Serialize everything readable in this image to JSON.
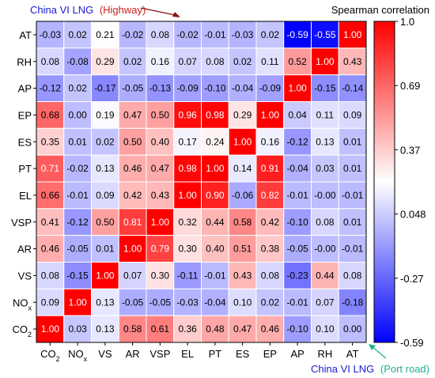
{
  "chart_data": {
    "type": "heatmap",
    "title": "",
    "xlabel": "",
    "ylabel": "",
    "colorbar_label": "Spearman correlation",
    "colorbar_ticks": [
      "1.0",
      "0.69",
      "0.37",
      "0.048",
      "-0.27",
      "-0.59"
    ],
    "colorbar_range": [
      -0.59,
      1.0
    ],
    "colors": {
      "high": "#ff0000",
      "mid": "#ffffff",
      "low": "#0000ff"
    },
    "x_labels": [
      "CO2",
      "NOx",
      "VS",
      "AR",
      "VSP",
      "EL",
      "PT",
      "ES",
      "EP",
      "AP",
      "RH",
      "AT"
    ],
    "y_labels": [
      "AT",
      "RH",
      "AP",
      "EP",
      "ES",
      "PT",
      "EL",
      "VSP",
      "AR",
      "VS",
      "NOx",
      "CO2"
    ],
    "values": [
      [
        -0.03,
        0.02,
        0.21,
        -0.02,
        0.08,
        -0.02,
        -0.01,
        -0.03,
        0.02,
        -0.59,
        -0.55,
        1.0
      ],
      [
        0.08,
        -0.08,
        0.29,
        0.02,
        0.16,
        0.07,
        0.08,
        0.02,
        0.11,
        0.52,
        1.0,
        0.43
      ],
      [
        -0.12,
        0.02,
        -0.17,
        -0.05,
        -0.13,
        -0.09,
        -0.1,
        -0.04,
        -0.09,
        1.0,
        -0.15,
        -0.14
      ],
      [
        0.68,
        0.0,
        0.19,
        0.47,
        0.5,
        0.96,
        0.98,
        0.29,
        1.0,
        0.04,
        0.11,
        0.09
      ],
      [
        0.35,
        0.01,
        0.02,
        0.5,
        0.4,
        0.17,
        0.24,
        1.0,
        0.16,
        -0.12,
        0.13,
        0.01
      ],
      [
        0.71,
        -0.02,
        0.13,
        0.46,
        0.47,
        0.98,
        1.0,
        0.14,
        0.91,
        -0.04,
        0.03,
        0.01
      ],
      [
        0.66,
        -0.01,
        0.09,
        0.42,
        0.43,
        1.0,
        0.9,
        -0.06,
        0.82,
        -0.01,
        -0.0,
        -0.01
      ],
      [
        0.41,
        -0.12,
        0.5,
        0.81,
        1.0,
        0.32,
        0.44,
        0.58,
        0.42,
        -0.1,
        0.08,
        0.01
      ],
      [
        0.46,
        -0.05,
        0.01,
        1.0,
        0.79,
        0.3,
        0.4,
        0.51,
        0.38,
        -0.05,
        -0.0,
        -0.01
      ],
      [
        0.08,
        -0.15,
        1.0,
        0.07,
        0.3,
        -0.11,
        -0.01,
        0.43,
        0.08,
        -0.23,
        0.44,
        0.08
      ],
      [
        0.09,
        1.0,
        0.13,
        -0.05,
        -0.05,
        -0.03,
        -0.04,
        0.1,
        0.02,
        -0.01,
        0.07,
        -0.18
      ],
      [
        1.0,
        0.03,
        0.13,
        0.58,
        0.61,
        0.36,
        0.48,
        0.47,
        0.46,
        -0.1,
        0.1,
        0.0
      ]
    ],
    "value_labels": [
      [
        "-0.03",
        "0.02",
        "0.21",
        "-0.02",
        "0.08",
        "-0.02",
        "-0.01",
        "-0.03",
        "0.02",
        "-0.59",
        "-0.55",
        "1.00"
      ],
      [
        "0.08",
        "-0.08",
        "0.29",
        "0.02",
        "0.16",
        "0.07",
        "0.08",
        "0.02",
        "0.11",
        "0.52",
        "1.00",
        "0.43"
      ],
      [
        "-0.12",
        "0.02",
        "-0.17",
        "-0.05",
        "-0.13",
        "-0.09",
        "-0.10",
        "-0.04",
        "-0.09",
        "1.00",
        "-0.15",
        "-0.14"
      ],
      [
        "0.68",
        "0.00",
        "0.19",
        "0.47",
        "0.50",
        "0.96",
        "0.98",
        "0.29",
        "1.00",
        "0.04",
        "0.11",
        "0.09"
      ],
      [
        "0.35",
        "0.01",
        "0.02",
        "0.50",
        "0.40",
        "0.17",
        "0.24",
        "1.00",
        "0.16",
        "-0.12",
        "0.13",
        "0.01"
      ],
      [
        "0.71",
        "-0.02",
        "0.13",
        "0.46",
        "0.47",
        "0.98",
        "1.00",
        "0.14",
        "0.91",
        "-0.04",
        "0.03",
        "0.01"
      ],
      [
        "0.66",
        "-0.01",
        "0.09",
        "0.42",
        "0.43",
        "1.00",
        "0.90",
        "-0.06",
        "0.82",
        "-0.01",
        "-0.00",
        "-0.01"
      ],
      [
        "0.41",
        "-0.12",
        "0.50",
        "0.81",
        "1.00",
        "0.32",
        "0.44",
        "0.58",
        "0.42",
        "-0.10",
        "0.08",
        "0.01"
      ],
      [
        "0.46",
        "-0.05",
        "0.01",
        "1.00",
        "0.79",
        "0.30",
        "0.40",
        "0.51",
        "0.38",
        "-0.05",
        "-0.00",
        "-0.01"
      ],
      [
        "0.08",
        "-0.15",
        "1.00",
        "0.07",
        "0.30",
        "-0.11",
        "-0.01",
        "0.43",
        "0.08",
        "-0.23",
        "0.44",
        "0.08"
      ],
      [
        "0.09",
        "1.00",
        "0.13",
        "-0.05",
        "-0.05",
        "-0.03",
        "-0.04",
        "0.10",
        "0.02",
        "-0.01",
        "0.07",
        "-0.18"
      ],
      [
        "1.00",
        "0.03",
        "0.13",
        "0.58",
        "0.61",
        "0.36",
        "0.48",
        "0.47",
        "0.46",
        "-0.10",
        "0.10",
        "0.00"
      ]
    ],
    "annotations": {
      "top": {
        "prefix": "China VI LNG",
        "suffix": "(Highway)",
        "prefix_color": "#1a1acc",
        "suffix_color": "#c8201e",
        "arrow_color": "#8b1010"
      },
      "bottom": {
        "prefix": "China VI LNG",
        "suffix": "(Port road)",
        "prefix_color": "#1a1acc",
        "suffix_color": "#20b090",
        "arrow_color": "#20b090"
      }
    }
  }
}
